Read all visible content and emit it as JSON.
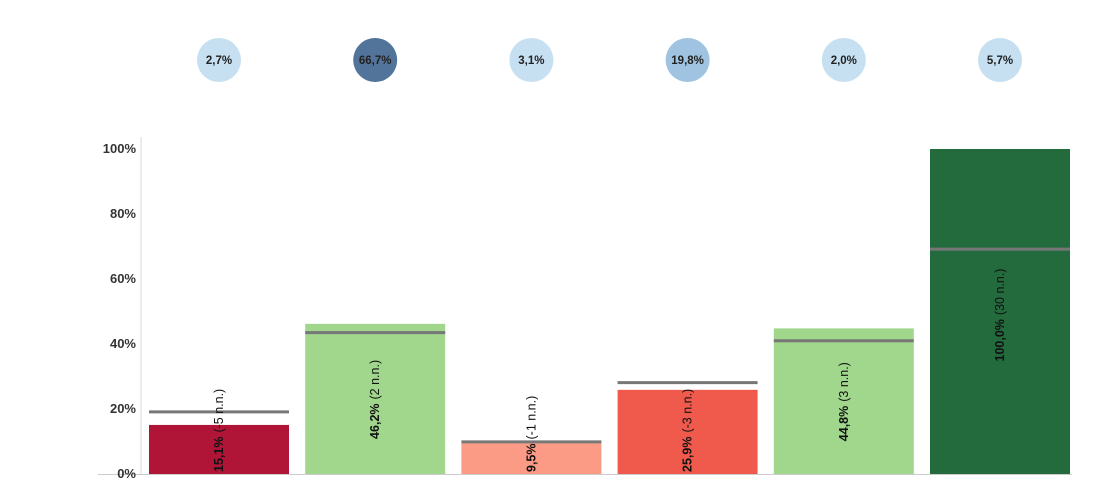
{
  "chart_data": {
    "type": "bar",
    "categories": [
      "",
      "",
      "",
      "",
      "",
      ""
    ],
    "series": [
      {
        "values": [
          15.1,
          46.2,
          9.5,
          25.9,
          44.8,
          100.0
        ],
        "reference_values": [
          19.1,
          43.5,
          9.9,
          28.1,
          41.0,
          69.2
        ]
      }
    ],
    "share_bubbles": [
      "2,7%",
      "66,7%",
      "3,1%",
      "19,8%",
      "2,0%",
      "5,7%"
    ],
    "bubble_colors": [
      "#c6e0f2",
      "#52739a",
      "#c6e0f2",
      "#9fc3e0",
      "#c6e0f2",
      "#c6e0f2"
    ],
    "bar_labels": [
      {
        "value": "15,1%",
        "change": "(-5 n.n.)"
      },
      {
        "value": "46,2%",
        "change": "(2 n.n.)"
      },
      {
        "value": "9,5%",
        "change": "(-1 n.n.)"
      },
      {
        "value": "25,9%",
        "change": "(-3 n.n.)"
      },
      {
        "value": "44,8%",
        "change": "(3 n.n.)"
      },
      {
        "value": "100,0%",
        "change": "(30 n.n.)"
      }
    ],
    "bar_colors": [
      "#b01538",
      "#a0d78c",
      "#fb9a85",
      "#ef5a4d",
      "#a0d78c",
      "#236a3d"
    ],
    "reference_line_color": "#777777",
    "y_ticks": [
      "0%",
      "20%",
      "40%",
      "60%",
      "80%",
      "100%"
    ],
    "ylim": [
      0,
      100
    ],
    "grid": false,
    "legend": "none",
    "title": "",
    "xlabel": "",
    "ylabel": ""
  }
}
